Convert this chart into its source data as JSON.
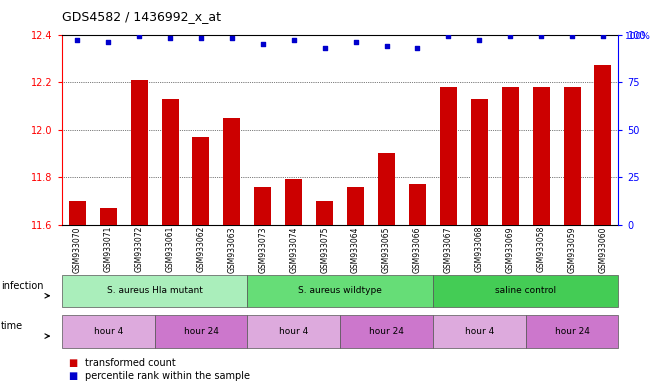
{
  "title": "GDS4582 / 1436992_x_at",
  "samples": [
    "GSM933070",
    "GSM933071",
    "GSM933072",
    "GSM933061",
    "GSM933062",
    "GSM933063",
    "GSM933073",
    "GSM933074",
    "GSM933075",
    "GSM933064",
    "GSM933065",
    "GSM933066",
    "GSM933067",
    "GSM933068",
    "GSM933069",
    "GSM933058",
    "GSM933059",
    "GSM933060"
  ],
  "bar_values": [
    11.7,
    11.67,
    12.21,
    12.13,
    11.97,
    12.05,
    11.76,
    11.79,
    11.7,
    11.76,
    11.9,
    11.77,
    12.18,
    12.13,
    12.18,
    12.18,
    12.18,
    12.27
  ],
  "percentile_values": [
    97,
    96,
    99,
    98,
    98,
    98,
    95,
    97,
    93,
    96,
    94,
    93,
    99,
    97,
    99,
    99,
    99,
    99
  ],
  "ylim_left": [
    11.6,
    12.4
  ],
  "ylim_right": [
    0,
    100
  ],
  "bar_color": "#cc0000",
  "dot_color": "#0000cc",
  "groups": [
    {
      "label": "S. aureus Hla mutant",
      "start": 0,
      "end": 6,
      "color": "#aaeebb"
    },
    {
      "label": "S. aureus wildtype",
      "start": 6,
      "end": 12,
      "color": "#66dd77"
    },
    {
      "label": "saline control",
      "start": 12,
      "end": 18,
      "color": "#44cc55"
    }
  ],
  "time_groups": [
    {
      "label": "hour 4",
      "start": 0,
      "end": 3,
      "color": "#ddaadd"
    },
    {
      "label": "hour 24",
      "start": 3,
      "end": 6,
      "color": "#cc77cc"
    },
    {
      "label": "hour 4",
      "start": 6,
      "end": 9,
      "color": "#ddaadd"
    },
    {
      "label": "hour 24",
      "start": 9,
      "end": 12,
      "color": "#cc77cc"
    },
    {
      "label": "hour 4",
      "start": 12,
      "end": 15,
      "color": "#ddaadd"
    },
    {
      "label": "hour 24",
      "start": 15,
      "end": 18,
      "color": "#cc77cc"
    }
  ],
  "infection_label": "infection",
  "time_label": "time",
  "legend_bar": "transformed count",
  "legend_dot": "percentile rank within the sample",
  "yticks_left": [
    11.6,
    11.8,
    12.0,
    12.2,
    12.4
  ],
  "yticks_right": [
    0,
    25,
    50,
    75,
    100
  ],
  "background_color": "#ffffff"
}
